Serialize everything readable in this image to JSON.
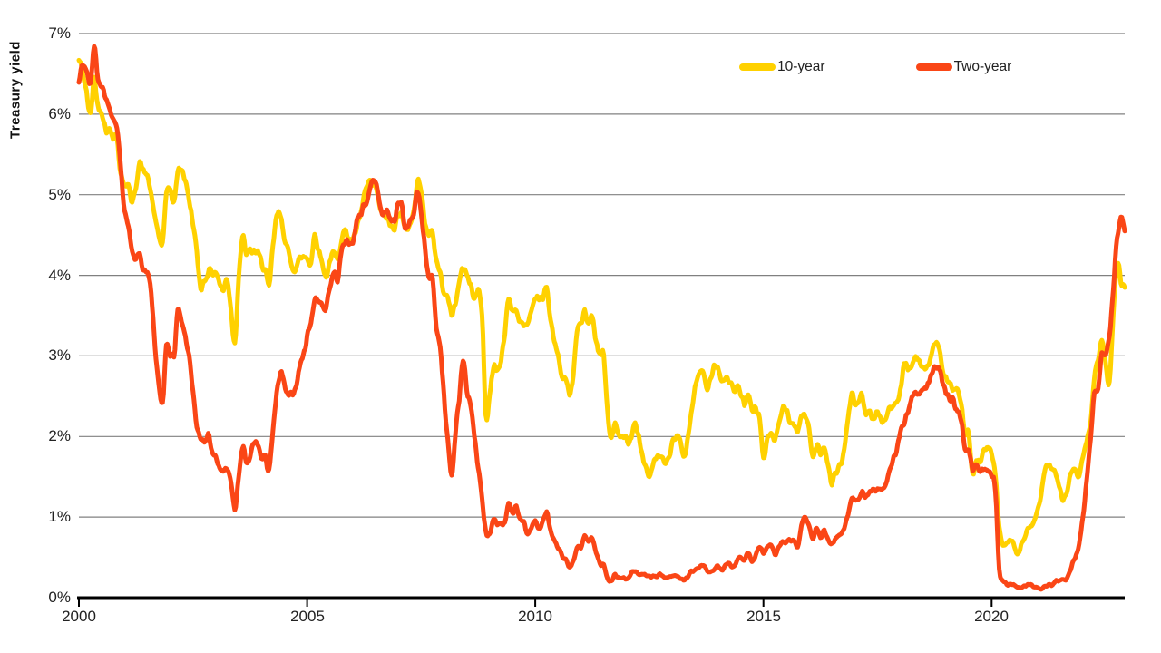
{
  "chart_data": {
    "type": "line",
    "title": "",
    "ylabel": "Treasury yield",
    "grid": "horizontal",
    "legend_position": "top-right-inside",
    "x_start_year": 2000,
    "frequency": "monthly",
    "x_end": "2022-12",
    "xlim": [
      2000,
      2022.92
    ],
    "ylim": [
      0,
      7
    ],
    "y_tick_values": [
      0,
      1,
      2,
      3,
      4,
      5,
      6,
      7
    ],
    "y_tick_labels": [
      "0%",
      "1%",
      "2%",
      "3%",
      "4%",
      "5%",
      "6%",
      "7%"
    ],
    "x_tick_values": [
      2000,
      2005,
      2010,
      2015,
      2020
    ],
    "x_tick_labels": [
      "2000",
      "2005",
      "2010",
      "2015",
      "2020"
    ],
    "axis_color": "#000000",
    "gridline_color": "#808080",
    "series": [
      {
        "name": "10-year",
        "color": "#FFD100",
        "values": [
          6.66,
          6.52,
          6.26,
          5.99,
          6.44,
          6.1,
          6.05,
          5.83,
          5.8,
          5.74,
          5.72,
          5.24,
          5.16,
          5.1,
          4.89,
          5.14,
          5.39,
          5.28,
          5.24,
          4.97,
          4.73,
          4.5,
          4.35,
          5.05,
          5.04,
          4.91,
          5.28,
          5.33,
          5.16,
          4.93,
          4.65,
          4.26,
          3.87,
          3.94,
          4.05,
          4.03,
          4.05,
          3.9,
          3.81,
          3.96,
          3.57,
          3.18,
          3.98,
          4.45,
          4.27,
          4.29,
          4.3,
          4.27,
          4.15,
          4.08,
          3.83,
          4.35,
          4.72,
          4.73,
          4.5,
          4.28,
          4.13,
          4.1,
          4.19,
          4.23,
          4.22,
          4.17,
          4.5,
          4.34,
          4.14,
          4.0,
          4.18,
          4.26,
          4.2,
          4.46,
          4.54,
          4.47,
          4.42,
          4.57,
          4.72,
          4.99,
          5.11,
          5.11,
          5.09,
          4.88,
          4.72,
          4.73,
          4.6,
          4.56,
          4.76,
          4.72,
          4.56,
          4.69,
          4.75,
          5.2,
          5.0,
          4.67,
          4.52,
          4.53,
          4.15,
          4.1,
          3.74,
          3.74,
          3.51,
          3.68,
          3.88,
          4.1,
          4.01,
          3.89,
          3.69,
          3.81,
          3.53,
          2.25,
          2.52,
          2.87,
          2.82,
          2.93,
          3.29,
          3.72,
          3.56,
          3.59,
          3.4,
          3.39,
          3.4,
          3.59,
          3.73,
          3.69,
          3.73,
          3.85,
          3.42,
          3.2,
          3.01,
          2.7,
          2.65,
          2.54,
          2.76,
          3.29,
          3.39,
          3.58,
          3.41,
          3.46,
          3.17,
          3.0,
          3.0,
          2.3,
          1.98,
          2.15,
          2.01,
          1.98,
          1.97,
          1.97,
          2.17,
          2.05,
          1.8,
          1.62,
          1.5,
          1.68,
          1.72,
          1.75,
          1.65,
          1.72,
          1.91,
          1.98,
          1.96,
          1.76,
          1.93,
          2.3,
          2.58,
          2.74,
          2.81,
          2.62,
          2.72,
          2.9,
          2.86,
          2.71,
          2.72,
          2.71,
          2.56,
          2.6,
          2.54,
          2.42,
          2.53,
          2.3,
          2.33,
          2.21,
          1.75,
          1.94,
          2.04,
          1.94,
          2.2,
          2.36,
          2.32,
          2.17,
          2.17,
          2.07,
          2.26,
          2.24,
          2.09,
          1.78,
          1.89,
          1.81,
          1.81,
          1.64,
          1.42,
          1.56,
          1.63,
          1.76,
          2.14,
          2.49,
          2.43,
          2.42,
          2.48,
          2.3,
          2.3,
          2.19,
          2.32,
          2.21,
          2.2,
          2.36,
          2.35,
          2.4,
          2.58,
          2.86,
          2.84,
          2.87,
          2.98,
          2.91,
          2.89,
          2.89,
          3.0,
          3.15,
          3.12,
          2.83,
          2.71,
          2.68,
          2.57,
          2.53,
          2.4,
          2.07,
          2.06,
          1.52,
          1.68,
          1.71,
          1.81,
          1.86,
          1.76,
          1.5,
          0.87,
          0.66,
          0.67,
          0.73,
          0.62,
          0.55,
          0.68,
          0.79,
          0.87,
          0.93,
          1.08,
          1.26,
          1.61,
          1.64,
          1.62,
          1.52,
          1.32,
          1.22,
          1.37,
          1.58,
          1.56,
          1.47,
          1.78,
          1.93,
          2.13,
          2.75,
          2.9,
          3.14,
          2.9,
          2.7,
          3.52,
          4.18,
          3.9,
          3.85
        ]
      },
      {
        "name": "Two-year",
        "color": "#FA4616",
        "values": [
          6.44,
          6.61,
          6.53,
          6.4,
          6.81,
          6.48,
          6.34,
          6.23,
          6.08,
          5.95,
          5.88,
          5.35,
          4.76,
          4.66,
          4.34,
          4.23,
          4.26,
          4.08,
          4.04,
          3.76,
          3.12,
          2.6,
          2.45,
          3.11,
          3.03,
          3.02,
          3.56,
          3.42,
          3.26,
          2.99,
          2.56,
          2.13,
          2.0,
          1.91,
          2.01,
          1.84,
          1.74,
          1.63,
          1.57,
          1.62,
          1.42,
          1.1,
          1.47,
          1.86,
          1.71,
          1.75,
          1.93,
          1.91,
          1.76,
          1.74,
          1.58,
          2.07,
          2.53,
          2.76,
          2.64,
          2.51,
          2.53,
          2.58,
          2.85,
          3.01,
          3.22,
          3.38,
          3.73,
          3.65,
          3.64,
          3.64,
          3.87,
          4.04,
          3.95,
          4.27,
          4.42,
          4.4,
          4.4,
          4.67,
          4.73,
          4.89,
          4.97,
          5.2,
          5.12,
          4.9,
          4.77,
          4.8,
          4.74,
          4.67,
          4.88,
          4.85,
          4.57,
          4.67,
          4.77,
          5.05,
          4.82,
          4.31,
          4.01,
          3.97,
          3.34,
          3.12,
          2.48,
          1.97,
          1.5,
          2.05,
          2.45,
          2.95,
          2.57,
          2.36,
          2.0,
          1.61,
          1.21,
          0.82,
          0.81,
          0.98,
          0.93,
          0.93,
          0.93,
          1.18,
          1.02,
          1.12,
          0.97,
          0.95,
          0.8,
          0.87,
          0.93,
          0.86,
          0.96,
          1.06,
          0.83,
          0.72,
          0.62,
          0.52,
          0.48,
          0.38,
          0.45,
          0.62,
          0.61,
          0.77,
          0.7,
          0.73,
          0.56,
          0.41,
          0.41,
          0.23,
          0.21,
          0.28,
          0.25,
          0.26,
          0.24,
          0.28,
          0.34,
          0.29,
          0.29,
          0.29,
          0.25,
          0.27,
          0.26,
          0.28,
          0.27,
          0.26,
          0.27,
          0.27,
          0.26,
          0.23,
          0.25,
          0.33,
          0.34,
          0.36,
          0.4,
          0.34,
          0.3,
          0.34,
          0.39,
          0.33,
          0.4,
          0.42,
          0.39,
          0.45,
          0.51,
          0.47,
          0.57,
          0.45,
          0.53,
          0.64,
          0.55,
          0.62,
          0.64,
          0.54,
          0.61,
          0.69,
          0.67,
          0.7,
          0.71,
          0.64,
          0.88,
          0.98,
          0.9,
          0.73,
          0.88,
          0.77,
          0.82,
          0.73,
          0.67,
          0.74,
          0.77,
          0.84,
          0.98,
          1.2,
          1.21,
          1.2,
          1.31,
          1.24,
          1.3,
          1.34,
          1.37,
          1.34,
          1.38,
          1.55,
          1.7,
          1.84,
          2.03,
          2.18,
          2.28,
          2.46,
          2.53,
          2.53,
          2.57,
          2.64,
          2.77,
          2.88,
          2.86,
          2.68,
          2.54,
          2.5,
          2.44,
          2.33,
          2.21,
          1.81,
          1.84,
          1.57,
          1.65,
          1.55,
          1.61,
          1.61,
          1.52,
          1.33,
          0.38,
          0.22,
          0.17,
          0.19,
          0.15,
          0.14,
          0.13,
          0.15,
          0.17,
          0.14,
          0.12,
          0.11,
          0.15,
          0.16,
          0.16,
          0.2,
          0.22,
          0.22,
          0.26,
          0.39,
          0.51,
          0.68,
          0.99,
          1.44,
          1.94,
          2.55,
          2.62,
          3.0,
          3.05,
          3.25,
          3.87,
          4.45,
          4.7,
          4.55
        ]
      }
    ]
  }
}
